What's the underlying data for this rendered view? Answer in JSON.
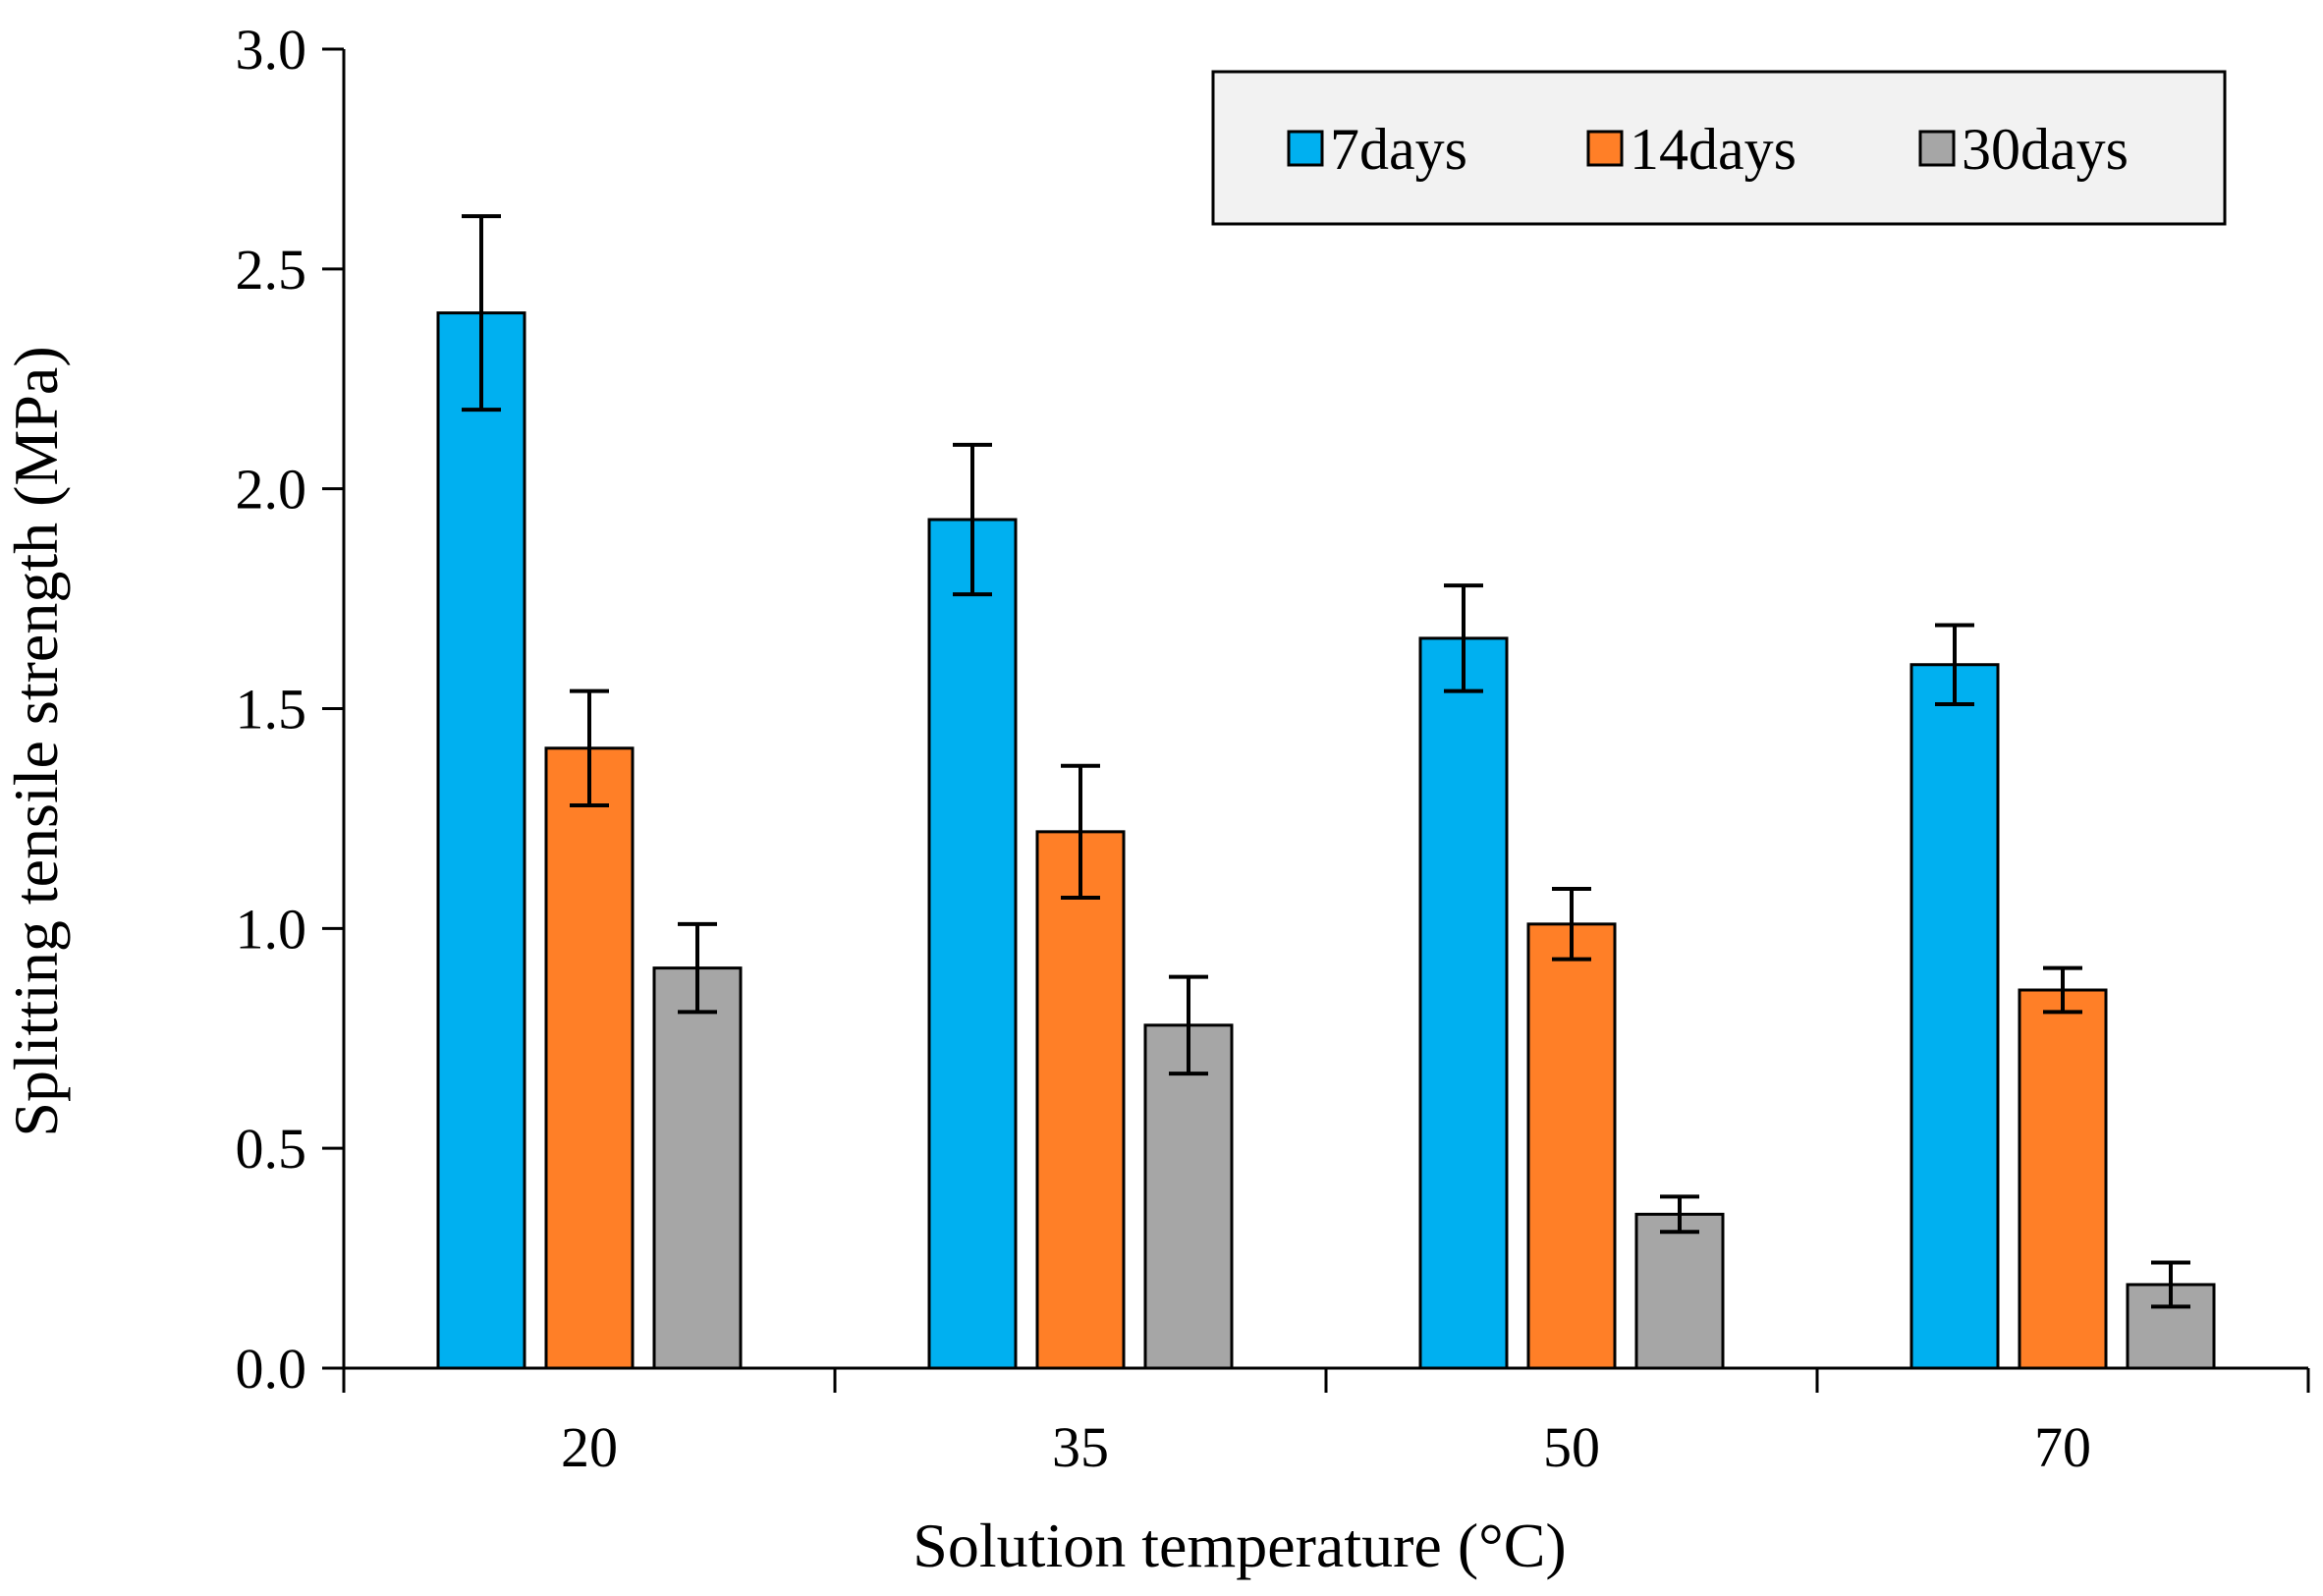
{
  "chart_data": {
    "type": "bar",
    "title": "",
    "xlabel": "Solution temperature (°C)",
    "ylabel": "Splitting tensile strength (MPa)",
    "categories": [
      "20",
      "35",
      "50",
      "70"
    ],
    "ylim": [
      0,
      3.0
    ],
    "yticks": [
      "0.0",
      "0.5",
      "1.0",
      "1.5",
      "2.0",
      "2.5",
      "3.0"
    ],
    "grid": false,
    "legend_position": "top-right",
    "series": [
      {
        "name": "7days",
        "color": "#00b0f0",
        "values": [
          2.4,
          1.93,
          1.66,
          1.6
        ],
        "errors": [
          0.22,
          0.17,
          0.12,
          0.09
        ]
      },
      {
        "name": "14days",
        "color": "#ff7f27",
        "values": [
          1.41,
          1.22,
          1.01,
          0.86
        ],
        "errors": [
          0.13,
          0.15,
          0.08,
          0.05
        ]
      },
      {
        "name": "30days",
        "color": "#a6a6a6",
        "values": [
          0.91,
          0.78,
          0.35,
          0.19
        ],
        "errors": [
          0.1,
          0.11,
          0.04,
          0.05
        ]
      }
    ]
  }
}
